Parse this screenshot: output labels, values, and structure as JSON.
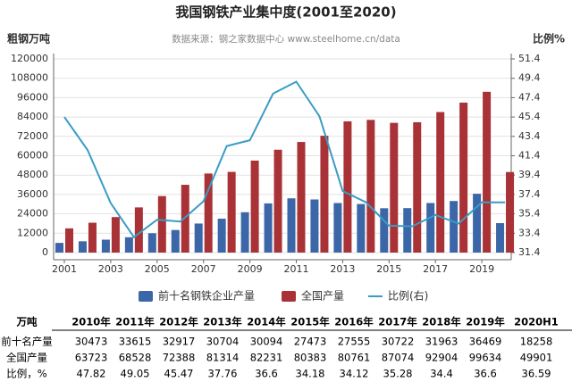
{
  "chart_data": {
    "type": "bar-line",
    "title": "我国钢铁产业集中度(2001至2020)",
    "subtitle": "数据来源：钢之家数据中心 www.steelhome.cn/data",
    "y_label": "粗钢万吨",
    "y2_label": "比例%",
    "categories": [
      "2001",
      null,
      "2003",
      null,
      "2005",
      null,
      "2007",
      null,
      "2009",
      null,
      "2011",
      null,
      "2013",
      null,
      "2015",
      null,
      "2017",
      null,
      "2019",
      null
    ],
    "series": [
      {
        "name": "前十名钢铁企业产量",
        "color": "#3b66a8",
        "values": [
          6000,
          7000,
          8000,
          9500,
          12000,
          14000,
          18000,
          21000,
          25000,
          30473,
          33615,
          32917,
          30704,
          30094,
          27473,
          27555,
          30722,
          31963,
          36469,
          18258
        ]
      },
      {
        "name": "全国产量",
        "color": "#a83236",
        "values": [
          15000,
          18500,
          22000,
          28000,
          35000,
          42000,
          49000,
          50000,
          57000,
          63723,
          68528,
          72388,
          81314,
          82231,
          80383,
          80761,
          87074,
          92904,
          99634,
          49901
        ]
      },
      {
        "name": "比例(右)",
        "color": "#3a9cc4",
        "axis": "y2",
        "type": "line",
        "values": [
          45.4,
          42,
          36.5,
          33,
          34.8,
          34.6,
          36.7,
          42.4,
          43,
          47.82,
          49.05,
          45.47,
          37.76,
          36.6,
          34.18,
          34.12,
          35.28,
          34.4,
          36.6,
          36.59
        ]
      }
    ],
    "ylim": [
      0,
      120000
    ],
    "yticks": [
      0,
      12000,
      24000,
      36000,
      48000,
      60000,
      72000,
      84000,
      96000,
      108000,
      120000
    ],
    "y2lim": [
      31.4,
      51.4
    ],
    "y2ticks": [
      31.4,
      33.4,
      35.4,
      37.4,
      39.4,
      41.4,
      43.4,
      45.4,
      47.4,
      49.4,
      51.4
    ],
    "grid": true,
    "legend": "bottom"
  },
  "table": {
    "header": [
      "万吨",
      "2010年",
      "2011年",
      "2012年",
      "2013年",
      "2014年",
      "2015年",
      "2016年",
      "2017年",
      "2018年",
      "2019年",
      "2020H1"
    ],
    "rows": [
      [
        "前十名产量",
        30473,
        33615,
        32917,
        30704,
        30094,
        27473,
        27555,
        30722,
        31963,
        36469,
        18258
      ],
      [
        "全国产量",
        63723,
        68528,
        72388,
        81314,
        82231,
        80383,
        80761,
        87074,
        92904,
        99634,
        49901
      ],
      [
        "比例，%",
        47.82,
        49.05,
        45.47,
        37.76,
        36.6,
        34.18,
        34.12,
        35.28,
        34.4,
        36.6,
        36.59
      ]
    ]
  }
}
